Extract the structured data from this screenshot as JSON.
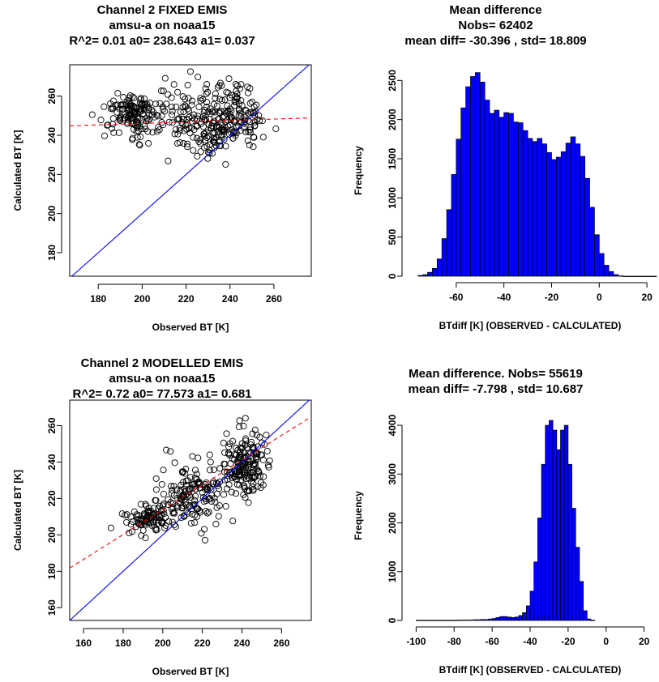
{
  "chart_data": [
    {
      "type": "scatter",
      "title_lines": [
        "Channel 2  FIXED EMIS",
        "amsu-a on noaa15",
        "R^2= 0.01  a0= 238.643  a1= 0.037"
      ],
      "xlabel": "Observed BT [K]",
      "ylabel": "Calculated BT [K]",
      "xlim": [
        167,
        277
      ],
      "ylim": [
        168,
        276
      ],
      "xticks": [
        180,
        200,
        220,
        240,
        260
      ],
      "yticks": [
        180,
        200,
        220,
        240,
        260
      ],
      "regression": {
        "a0": 238.643,
        "a1": 0.037
      },
      "identity_line": true,
      "clusters": [
        {
          "cx": 196,
          "cy": 250,
          "sx": 7,
          "sy": 5,
          "n": 150
        },
        {
          "cx": 222,
          "cy": 248,
          "sx": 8,
          "sy": 8,
          "n": 110
        },
        {
          "cx": 242,
          "cy": 250,
          "sx": 6,
          "sy": 8,
          "n": 140
        },
        {
          "cx": 232,
          "cy": 238,
          "sx": 5,
          "sy": 4,
          "n": 30
        }
      ]
    },
    {
      "type": "bar",
      "title_lines": [
        "Mean difference",
        "Nobs= 62402",
        "mean diff= -30.396 , std= 18.809"
      ],
      "xlabel": "BTdiff [K] (OBSERVED - CALCULATED)",
      "ylabel": "Frequency",
      "xlim": [
        -80,
        22
      ],
      "ylim": [
        0,
        2700
      ],
      "xticks": [
        -60,
        -40,
        -20,
        0,
        20
      ],
      "yticks": [
        0,
        500,
        1000,
        1500,
        2000,
        2500
      ],
      "bin_width": 2,
      "bins_start": -76,
      "values": [
        10,
        20,
        50,
        100,
        220,
        480,
        850,
        1300,
        1750,
        2150,
        2420,
        2550,
        2600,
        2480,
        2250,
        2080,
        2120,
        2030,
        2090,
        2080,
        1970,
        1960,
        1860,
        1760,
        1720,
        1760,
        1690,
        1580,
        1490,
        1520,
        1590,
        1700,
        1780,
        1690,
        1530,
        1250,
        880,
        530,
        290,
        140,
        60,
        20,
        5,
        0,
        0,
        0,
        0,
        0,
        0,
        0
      ],
      "bar_color": "#0000ff"
    },
    {
      "type": "scatter",
      "title_lines": [
        "Channel 2   MODELLED EMIS",
        "amsu-a on noaa15",
        "R^2= 0.72  a0= 77.573  a1= 0.681"
      ],
      "xlabel": "Observed BT [K]",
      "ylabel": "Calculated BT [K]",
      "xlim": [
        153,
        275
      ],
      "ylim": [
        153,
        274
      ],
      "xticks": [
        160,
        180,
        200,
        220,
        240,
        260
      ],
      "yticks": [
        160,
        180,
        200,
        220,
        240,
        260
      ],
      "regression": {
        "a0": 77.573,
        "a1": 0.681
      },
      "identity_line": true,
      "clusters": [
        {
          "cx": 192,
          "cy": 208,
          "sx": 6,
          "sy": 4,
          "n": 90
        },
        {
          "cx": 215,
          "cy": 222,
          "sx": 9,
          "sy": 9,
          "n": 160
        },
        {
          "cx": 242,
          "cy": 238,
          "sx": 6,
          "sy": 9,
          "n": 180
        }
      ]
    },
    {
      "type": "bar",
      "title_lines": [
        "Mean difference. Nobs= 55619",
        "mean diff= -7.798 , std= 10.687"
      ],
      "xlabel": "BTdiff [K] (OBSERVED - CALCULATED)",
      "ylabel": "Frequency",
      "xlim": [
        -104,
        24
      ],
      "ylim": [
        0,
        4300
      ],
      "xticks": [
        -100,
        -80,
        -60,
        -40,
        -20,
        0,
        20
      ],
      "yticks": [
        0,
        1000,
        2000,
        3000,
        4000
      ],
      "bin_width": 2,
      "bins_start": -100,
      "values": [
        5,
        5,
        5,
        5,
        5,
        5,
        5,
        5,
        5,
        5,
        5,
        8,
        8,
        10,
        10,
        15,
        15,
        20,
        20,
        30,
        40,
        60,
        80,
        80,
        70,
        60,
        70,
        100,
        160,
        300,
        600,
        1200,
        2100,
        3200,
        4000,
        4100,
        3900,
        3500,
        3900,
        4000,
        3200,
        2300,
        1500,
        800,
        200,
        30,
        5
      ],
      "bar_color": "#0000ff"
    }
  ]
}
